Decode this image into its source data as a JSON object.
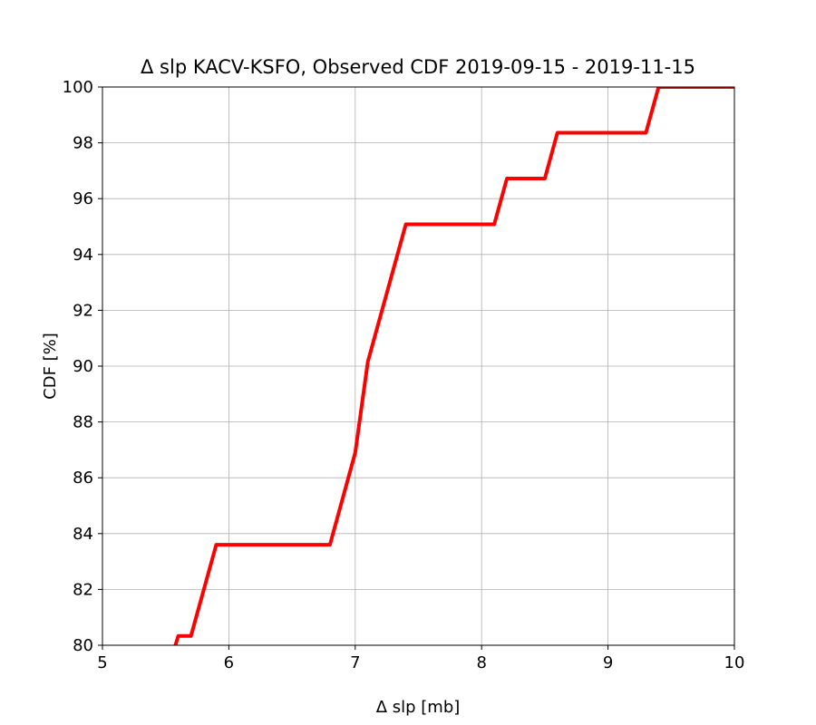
{
  "chart_data": {
    "type": "line",
    "title": "Δ slp KACV-KSFO, Observed CDF 2019-09-15 - 2019-11-15",
    "xlabel": "Δ slp [mb]",
    "ylabel": "CDF [%]",
    "xlim": [
      5,
      10
    ],
    "ylim": [
      80,
      100
    ],
    "xticks": [
      5,
      6,
      7,
      8,
      9,
      10
    ],
    "xtick_labels": [
      "5",
      "6",
      "7",
      "8",
      "9",
      "10"
    ],
    "yticks": [
      80,
      82,
      84,
      86,
      88,
      90,
      92,
      94,
      96,
      98,
      100
    ],
    "ytick_labels": [
      "80",
      "82",
      "84",
      "86",
      "88",
      "90",
      "92",
      "94",
      "96",
      "98",
      "100"
    ],
    "grid": true,
    "series": [
      {
        "color": "#ff0000",
        "x": [
          5.57,
          5.6,
          5.7,
          5.9,
          6.8,
          7.0,
          7.1,
          7.4,
          8.1,
          8.2,
          8.5,
          8.6,
          9.3,
          9.4,
          10.0
        ],
        "y": [
          79.9,
          80.33,
          80.33,
          83.6,
          83.6,
          86.9,
          90.16,
          95.08,
          95.08,
          96.72,
          96.72,
          98.36,
          98.36,
          100.0,
          100.0
        ]
      }
    ]
  }
}
